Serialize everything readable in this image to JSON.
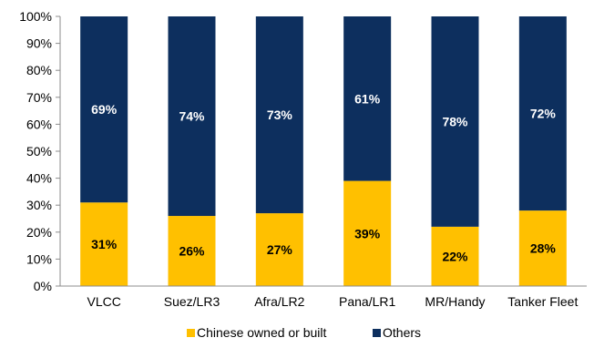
{
  "chart_data": {
    "type": "bar",
    "stacked": true,
    "categories": [
      "VLCC",
      "Suez/LR3",
      "Afra/LR2",
      "Pana/LR1",
      "MR/Handy",
      "Tanker Fleet"
    ],
    "series": [
      {
        "name": "Chinese owned or built",
        "values": [
          31,
          26,
          27,
          39,
          22,
          28
        ],
        "labels": [
          "31%",
          "26%",
          "27%",
          "39%",
          "22%",
          "28%"
        ],
        "color": "#FFC000"
      },
      {
        "name": "Others",
        "values": [
          69,
          74,
          73,
          61,
          78,
          72
        ],
        "labels": [
          "69%",
          "74%",
          "73%",
          "61%",
          "78%",
          "72%"
        ],
        "color": "#0D2F5E"
      }
    ],
    "ylim": [
      0,
      100
    ],
    "yticks": [
      "0%",
      "10%",
      "20%",
      "30%",
      "40%",
      "50%",
      "60%",
      "70%",
      "80%",
      "90%",
      "100%"
    ],
    "legend_position": "bottom",
    "grid": false
  }
}
